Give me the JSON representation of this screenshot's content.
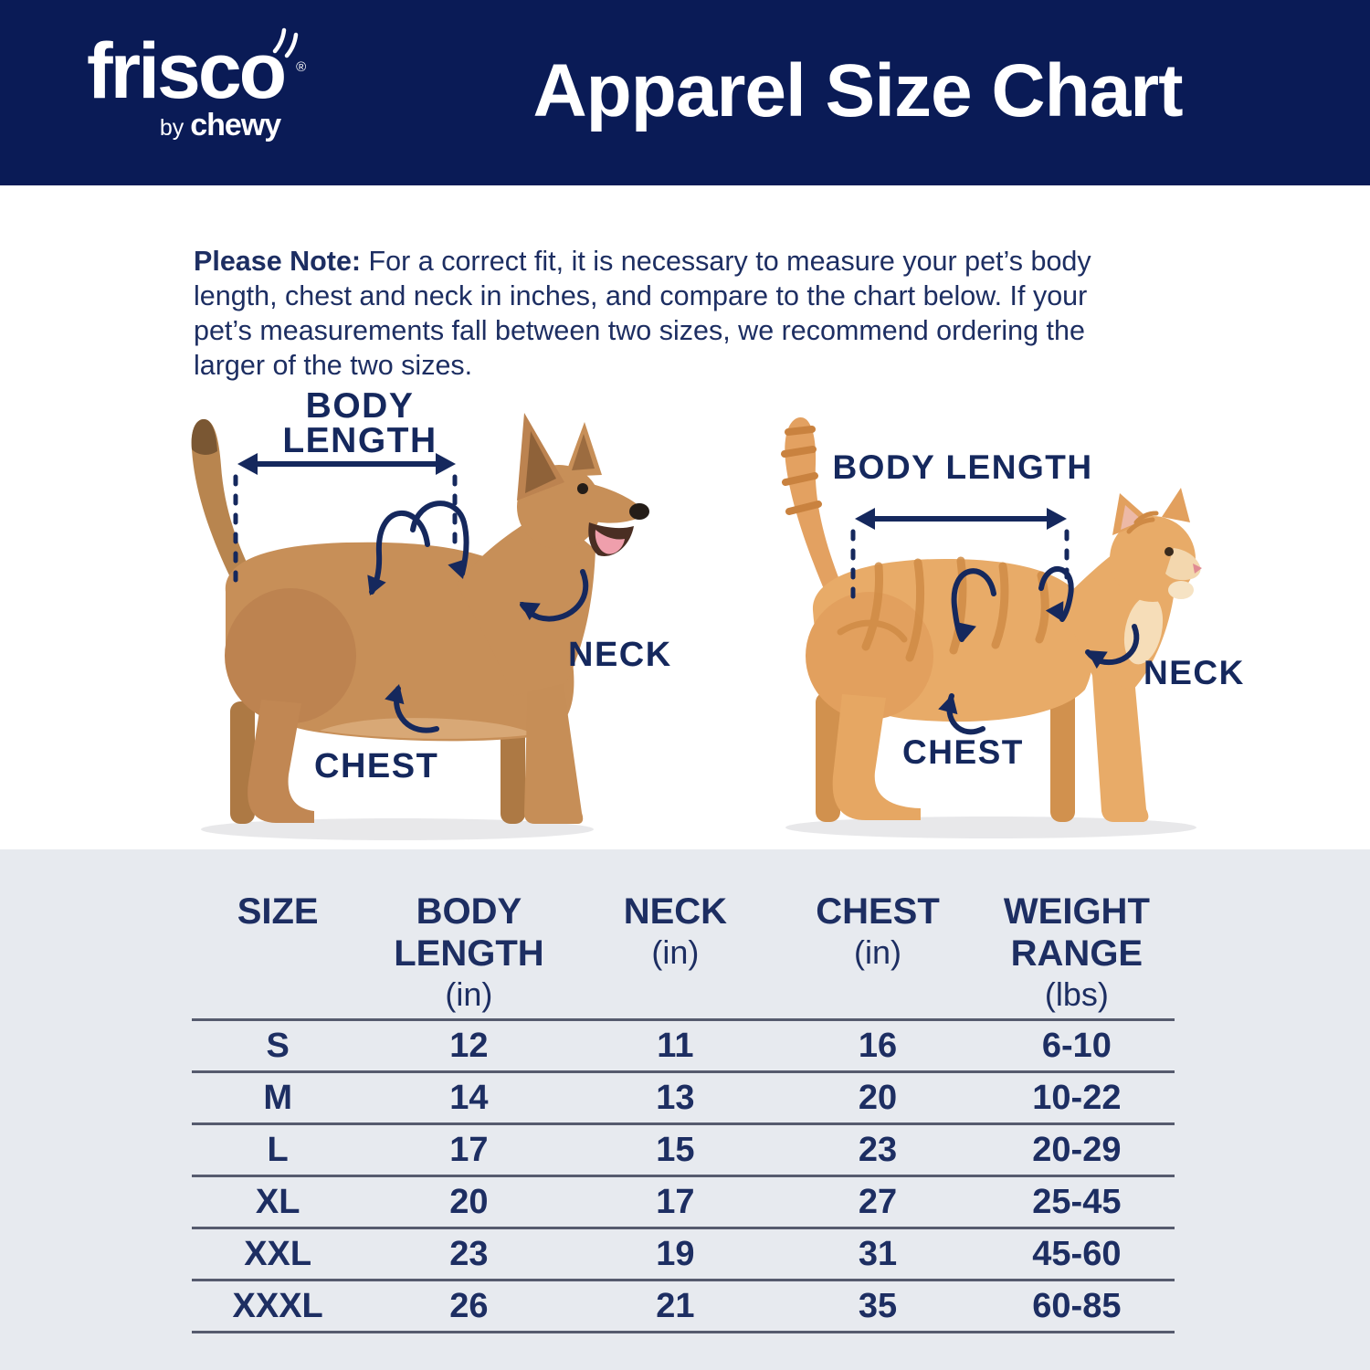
{
  "colors": {
    "header_navy": "#0a1b56",
    "text_navy": "#1d2e62",
    "annotation_navy": "#15285d",
    "table_background": "#e7eaef",
    "rule_gray": "#565b6e",
    "dog_coat": "#c78f58",
    "cat_coat": "#e8ab68"
  },
  "header": {
    "logo": {
      "brand": "frisco",
      "registered": "®",
      "byline": "by",
      "byline_brand": "chewy"
    },
    "title": "Apparel Size Chart"
  },
  "note": {
    "label": "Please Note:",
    "text": " For a correct fit, it is necessary to measure your pet’s body\nlength, chest and neck in inches, and compare to the chart below. If your\npet’s measurements fall between two sizes, we recommend ordering the\nlarger of the two sizes."
  },
  "diagram": {
    "dog": {
      "body_length": "BODY LENGTH",
      "neck": "NECK",
      "chest": "CHEST"
    },
    "cat": {
      "body_length": "BODY LENGTH",
      "neck": "NECK",
      "chest": "CHEST"
    }
  },
  "table": {
    "columns": [
      {
        "title": "SIZE",
        "unit": ""
      },
      {
        "title": "BODY\nLENGTH",
        "unit": "(in)"
      },
      {
        "title": "NECK",
        "unit": "(in)"
      },
      {
        "title": "CHEST",
        "unit": "(in)"
      },
      {
        "title": "WEIGHT\nRANGE",
        "unit": "(lbs)"
      }
    ],
    "rows": [
      [
        "S",
        "12",
        "11",
        "16",
        "6-10"
      ],
      [
        "M",
        "14",
        "13",
        "20",
        "10-22"
      ],
      [
        "L",
        "17",
        "15",
        "23",
        "20-29"
      ],
      [
        "XL",
        "20",
        "17",
        "27",
        "25-45"
      ],
      [
        "XXL",
        "23",
        "19",
        "31",
        "45-60"
      ],
      [
        "XXXL",
        "26",
        "21",
        "35",
        "60-85"
      ]
    ]
  },
  "chart_data": {
    "type": "table",
    "title": "Apparel Size Chart",
    "columns": [
      "SIZE",
      "BODY LENGTH (in)",
      "NECK (in)",
      "CHEST (in)",
      "WEIGHT RANGE (lbs)"
    ],
    "rows": [
      [
        "S",
        12,
        11,
        16,
        "6-10"
      ],
      [
        "M",
        14,
        13,
        20,
        "10-22"
      ],
      [
        "L",
        17,
        15,
        23,
        "20-29"
      ],
      [
        "XL",
        20,
        17,
        27,
        "25-45"
      ],
      [
        "XXL",
        23,
        19,
        31,
        "45-60"
      ],
      [
        "XXXL",
        26,
        21,
        35,
        "60-85"
      ]
    ]
  }
}
